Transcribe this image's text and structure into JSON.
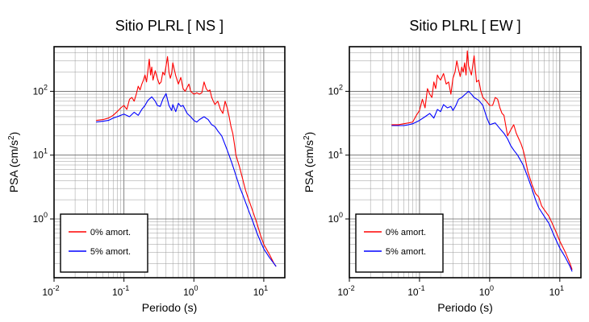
{
  "chart_data": [
    {
      "type": "line",
      "title": "Sitio PLRL [ NS ]",
      "xlabel": "Periodo (s)",
      "ylabel": "PSA (cm/s2)",
      "xscale": "log",
      "yscale": "log",
      "xlim": [
        0.01,
        20
      ],
      "ylim": [
        0.12,
        500
      ],
      "xticks": [
        0.01,
        0.1,
        1,
        10
      ],
      "yticks": [
        1,
        10,
        100
      ],
      "grid": true,
      "legend_position": "bottom-left",
      "series": [
        {
          "name": "0% amort.",
          "color": "#ff0000",
          "x": [
            0.04,
            0.05,
            0.06,
            0.07,
            0.08,
            0.09,
            0.1,
            0.11,
            0.12,
            0.13,
            0.14,
            0.15,
            0.16,
            0.17,
            0.18,
            0.19,
            0.2,
            0.21,
            0.22,
            0.23,
            0.24,
            0.25,
            0.26,
            0.28,
            0.3,
            0.32,
            0.34,
            0.36,
            0.38,
            0.4,
            0.42,
            0.44,
            0.46,
            0.48,
            0.5,
            0.55,
            0.6,
            0.65,
            0.7,
            0.75,
            0.8,
            0.85,
            0.9,
            1.0,
            1.1,
            1.2,
            1.3,
            1.4,
            1.5,
            1.6,
            1.7,
            1.8,
            1.9,
            2.0,
            2.2,
            2.4,
            2.6,
            2.8,
            3.0,
            3.2,
            3.4,
            3.6,
            3.8,
            4.0,
            4.5,
            5.0,
            5.5,
            6.0,
            7.0,
            8.0,
            9.0,
            10.0,
            12.0,
            14.0,
            15.0
          ],
          "y": [
            35,
            36,
            38,
            42,
            48,
            55,
            60,
            52,
            75,
            80,
            70,
            90,
            120,
            105,
            130,
            150,
            180,
            140,
            210,
            320,
            180,
            240,
            150,
            210,
            160,
            130,
            140,
            200,
            180,
            250,
            350,
            200,
            160,
            190,
            280,
            175,
            130,
            165,
            110,
            100,
            115,
            130,
            100,
            90,
            95,
            90,
            95,
            140,
            110,
            100,
            105,
            80,
            70,
            62,
            70,
            52,
            45,
            70,
            55,
            40,
            28,
            22,
            15,
            10,
            6.5,
            4.2,
            2.8,
            2.1,
            1.3,
            0.85,
            0.55,
            0.4,
            0.28,
            0.2,
            0.18
          ]
        },
        {
          "name": "5% amort.",
          "color": "#0000ff",
          "x": [
            0.04,
            0.05,
            0.06,
            0.07,
            0.08,
            0.09,
            0.1,
            0.12,
            0.14,
            0.16,
            0.18,
            0.2,
            0.22,
            0.25,
            0.28,
            0.3,
            0.33,
            0.36,
            0.4,
            0.44,
            0.48,
            0.5,
            0.55,
            0.6,
            0.65,
            0.7,
            0.8,
            0.9,
            1.0,
            1.1,
            1.2,
            1.4,
            1.6,
            1.8,
            2.0,
            2.2,
            2.5,
            3.0,
            3.5,
            4.0,
            4.5,
            5.0,
            6.0,
            7.0,
            8.0,
            9.0,
            10.0,
            12.0,
            14.0,
            15.0
          ],
          "y": [
            33,
            34,
            35,
            38,
            40,
            42,
            44,
            40,
            47,
            42,
            52,
            60,
            72,
            82,
            70,
            60,
            58,
            75,
            92,
            60,
            50,
            62,
            48,
            65,
            58,
            60,
            45,
            40,
            35,
            33,
            36,
            40,
            36,
            30,
            28,
            24,
            20,
            12,
            7.5,
            4.8,
            3.2,
            2.4,
            1.4,
            0.9,
            0.6,
            0.44,
            0.34,
            0.25,
            0.2,
            0.18
          ]
        }
      ]
    },
    {
      "type": "line",
      "title": "Sitio PLRL [ EW ]",
      "xlabel": "Periodo (s)",
      "ylabel": "PSA (cm/s2)",
      "xscale": "log",
      "yscale": "log",
      "xlim": [
        0.01,
        20
      ],
      "ylim": [
        0.12,
        500
      ],
      "xticks": [
        0.01,
        0.1,
        1,
        10
      ],
      "yticks": [
        1,
        10,
        100
      ],
      "grid": true,
      "legend_position": "bottom-left",
      "series": [
        {
          "name": "0% amort.",
          "color": "#ff0000",
          "x": [
            0.04,
            0.05,
            0.06,
            0.07,
            0.08,
            0.09,
            0.1,
            0.11,
            0.12,
            0.13,
            0.14,
            0.15,
            0.16,
            0.17,
            0.18,
            0.19,
            0.2,
            0.22,
            0.24,
            0.26,
            0.28,
            0.3,
            0.32,
            0.34,
            0.36,
            0.38,
            0.4,
            0.42,
            0.44,
            0.46,
            0.48,
            0.5,
            0.55,
            0.6,
            0.65,
            0.7,
            0.75,
            0.8,
            0.9,
            1.0,
            1.1,
            1.2,
            1.3,
            1.4,
            1.5,
            1.6,
            1.8,
            2.0,
            2.2,
            2.4,
            2.6,
            2.8,
            3.0,
            3.2,
            3.5,
            4.0,
            4.5,
            5.0,
            5.5,
            6.0,
            7.0,
            8.0,
            9.0,
            10.0,
            12.0,
            14.0,
            15.0
          ],
          "y": [
            30,
            30,
            31,
            32,
            33,
            42,
            50,
            75,
            55,
            110,
            90,
            80,
            140,
            110,
            180,
            160,
            150,
            190,
            130,
            140,
            90,
            160,
            200,
            300,
            220,
            170,
            240,
            200,
            280,
            180,
            430,
            250,
            180,
            360,
            140,
            150,
            100,
            80,
            70,
            60,
            60,
            80,
            75,
            55,
            45,
            42,
            20,
            25,
            30,
            22,
            18,
            15,
            12,
            9,
            5.5,
            3.5,
            2.5,
            2.2,
            1.6,
            1.4,
            1.1,
            0.8,
            0.6,
            0.45,
            0.3,
            0.2,
            0.16
          ]
        },
        {
          "name": "5% amort.",
          "color": "#0000ff",
          "x": [
            0.04,
            0.05,
            0.06,
            0.07,
            0.08,
            0.1,
            0.12,
            0.14,
            0.16,
            0.18,
            0.2,
            0.22,
            0.25,
            0.28,
            0.3,
            0.33,
            0.36,
            0.4,
            0.45,
            0.5,
            0.55,
            0.6,
            0.7,
            0.8,
            0.9,
            1.0,
            1.2,
            1.4,
            1.6,
            1.8,
            2.0,
            2.2,
            2.5,
            3.0,
            3.5,
            4.0,
            4.5,
            5.0,
            6.0,
            7.0,
            8.0,
            9.0,
            10.0,
            12.0,
            14.0,
            15.0
          ],
          "y": [
            29,
            29,
            29,
            30,
            31,
            35,
            40,
            45,
            38,
            52,
            48,
            62,
            55,
            58,
            50,
            60,
            75,
            80,
            90,
            100,
            90,
            80,
            72,
            60,
            40,
            30,
            32,
            26,
            22,
            18,
            14,
            12,
            10,
            7,
            4.5,
            3,
            2,
            1.5,
            1.1,
            0.85,
            0.6,
            0.45,
            0.35,
            0.25,
            0.18,
            0.15
          ]
        }
      ]
    }
  ]
}
